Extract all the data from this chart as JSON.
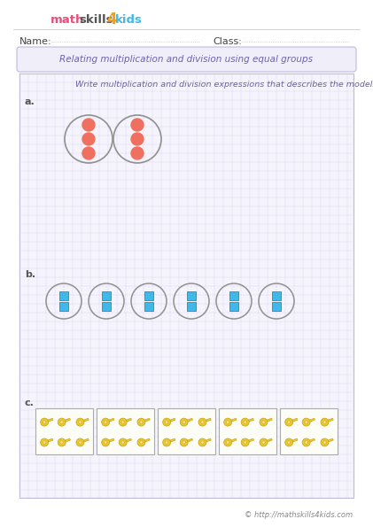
{
  "title": "Relating multiplication and division using equal groups",
  "instruction": "Write multiplication and division expressions that describes the models below.",
  "name_label": "Name:",
  "class_label": "Class:",
  "label_a": "a.",
  "label_b": "b.",
  "label_c": "c.",
  "bg_color": "#ffffff",
  "grid_color": "#d8d4ee",
  "grid_bg": "#f5f4fc",
  "title_box_color": "#f0eef8",
  "title_text_color": "#7060b0",
  "dot_color": "#f07060",
  "circle_color": "#909090",
  "square_color": "#40b8e8",
  "square_edge_color": "#1890c0",
  "key_fill": "#e8c830",
  "key_edge": "#c8a010",
  "box_edge": "#aaaaaa",
  "box_fill": "#fdfdf8",
  "footer_text": "© http://mathskills4kids.com",
  "instruction_color": "#6b5ea8",
  "label_color": "#555555",
  "name_dot_color": "#aaaaaa",
  "hrule_color": "#cccccc",
  "logo_math_color": "#e8507a",
  "logo_skills_color": "#555555",
  "logo_4_color": "#f0a020",
  "logo_kids_color": "#40b8e8"
}
